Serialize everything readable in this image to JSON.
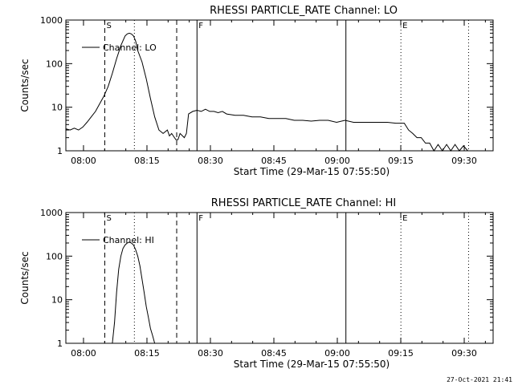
{
  "footer": {
    "timestamp": "27-Oct-2021 21:41"
  },
  "chart_data": [
    {
      "type": "line",
      "title": "RHESSI PARTICLE_RATE Channel: LO",
      "xlabel": "Start Time (29-Mar-15 07:55:50)",
      "ylabel": "Counts/sec",
      "yscale": "log",
      "ylim": [
        1,
        1000
      ],
      "xlim_minutes_after_start": [
        0,
        101
      ],
      "xticks": {
        "labels": [
          "08:00",
          "08:15",
          "08:30",
          "08:45",
          "09:00",
          "09:15",
          "09:30"
        ],
        "minutes": [
          4.17,
          19.17,
          34.17,
          49.17,
          64.17,
          79.17,
          94.17
        ]
      },
      "yticks": {
        "labels": [
          "1",
          "10",
          "100",
          "1000"
        ],
        "values": [
          1,
          10,
          100,
          1000
        ]
      },
      "legend": {
        "label": "Channel: LO",
        "position": "top-left"
      },
      "markers": [
        {
          "label": "S",
          "minute": 9.2,
          "style": "dashed"
        },
        {
          "label": "",
          "minute": 16.2,
          "style": "dotted"
        },
        {
          "label": "",
          "minute": 26.2,
          "style": "dashed"
        },
        {
          "label": "F",
          "minute": 31.0,
          "style": "solid"
        },
        {
          "label": "",
          "minute": 66.2,
          "style": "solid"
        },
        {
          "label": "E",
          "minute": 79.2,
          "style": "dotted"
        },
        {
          "label": "",
          "minute": 95.2,
          "style": "dotted"
        }
      ],
      "series": [
        {
          "name": "Channel: LO",
          "x": [
            0,
            1,
            2,
            3,
            4,
            5,
            6,
            7,
            8,
            9,
            10,
            11,
            12,
            13,
            14,
            14.5,
            15,
            15.5,
            16,
            16.5,
            17,
            18,
            19,
            20,
            21,
            22,
            23,
            24,
            24.5,
            25,
            26,
            26.5,
            27,
            28,
            28.5,
            29,
            30,
            31,
            32,
            33,
            34,
            35,
            36,
            37,
            38,
            40,
            42,
            44,
            46,
            48,
            50,
            52,
            54,
            56,
            58,
            60,
            62,
            64,
            66,
            68,
            70,
            72,
            74,
            76,
            78,
            80,
            81,
            82,
            83,
            84,
            85,
            86,
            87,
            88,
            89,
            90,
            91,
            92,
            93,
            94,
            95
          ],
          "y": [
            3.2,
            3.0,
            3.3,
            3.0,
            3.5,
            4.5,
            6,
            8,
            12,
            18,
            30,
            60,
            130,
            260,
            430,
            480,
            500,
            480,
            430,
            330,
            200,
            110,
            45,
            16,
            6,
            3,
            2.5,
            3,
            2.2,
            2.5,
            1.8,
            1.8,
            2.5,
            2.0,
            2.5,
            7,
            8,
            8.5,
            8,
            9,
            8,
            8,
            7.5,
            8,
            7,
            6.5,
            6.5,
            6,
            6,
            5.5,
            5.5,
            5.5,
            5,
            5,
            4.8,
            5,
            5,
            4.5,
            5,
            4.5,
            4.5,
            4.5,
            4.5,
            4.5,
            4.3,
            4.3,
            3.0,
            2.5,
            2.0,
            2.0,
            1.5,
            1.5,
            1.0,
            1.4,
            1.0,
            1.4,
            1.0,
            1.4,
            1.0,
            1.3,
            1.0
          ]
        }
      ]
    },
    {
      "type": "line",
      "title": "RHESSI PARTICLE_RATE Channel: HI",
      "xlabel": "Start Time (29-Mar-15 07:55:50)",
      "ylabel": "Counts/sec",
      "yscale": "log",
      "ylim": [
        1,
        1000
      ],
      "xlim_minutes_after_start": [
        0,
        101
      ],
      "xticks": {
        "labels": [
          "08:00",
          "08:15",
          "08:30",
          "08:45",
          "09:00",
          "09:15",
          "09:30"
        ],
        "minutes": [
          4.17,
          19.17,
          34.17,
          49.17,
          64.17,
          79.17,
          94.17
        ]
      },
      "yticks": {
        "labels": [
          "1",
          "10",
          "100",
          "1000"
        ],
        "values": [
          1,
          10,
          100,
          1000
        ]
      },
      "legend": {
        "label": "Channel: HI",
        "position": "top-left"
      },
      "markers": [
        {
          "label": "S",
          "minute": 9.2,
          "style": "dashed"
        },
        {
          "label": "",
          "minute": 16.2,
          "style": "dotted"
        },
        {
          "label": "",
          "minute": 26.2,
          "style": "dashed"
        },
        {
          "label": "F",
          "minute": 31.0,
          "style": "solid"
        },
        {
          "label": "",
          "minute": 66.2,
          "style": "solid"
        },
        {
          "label": "E",
          "minute": 79.2,
          "style": "dotted"
        },
        {
          "label": "",
          "minute": 95.2,
          "style": "dotted"
        }
      ],
      "series": [
        {
          "name": "Channel: HI",
          "x": [
            11,
            11.5,
            12,
            12.5,
            13,
            13.5,
            14,
            14.5,
            15,
            15.5,
            16,
            16.5,
            17,
            17.5,
            18,
            18.5,
            19,
            19.5,
            20,
            20.5,
            21
          ],
          "y": [
            1.0,
            3,
            15,
            50,
            100,
            150,
            180,
            200,
            210,
            200,
            180,
            140,
            100,
            60,
            30,
            15,
            7,
            4,
            2.2,
            1.5,
            1.0
          ]
        }
      ]
    }
  ]
}
